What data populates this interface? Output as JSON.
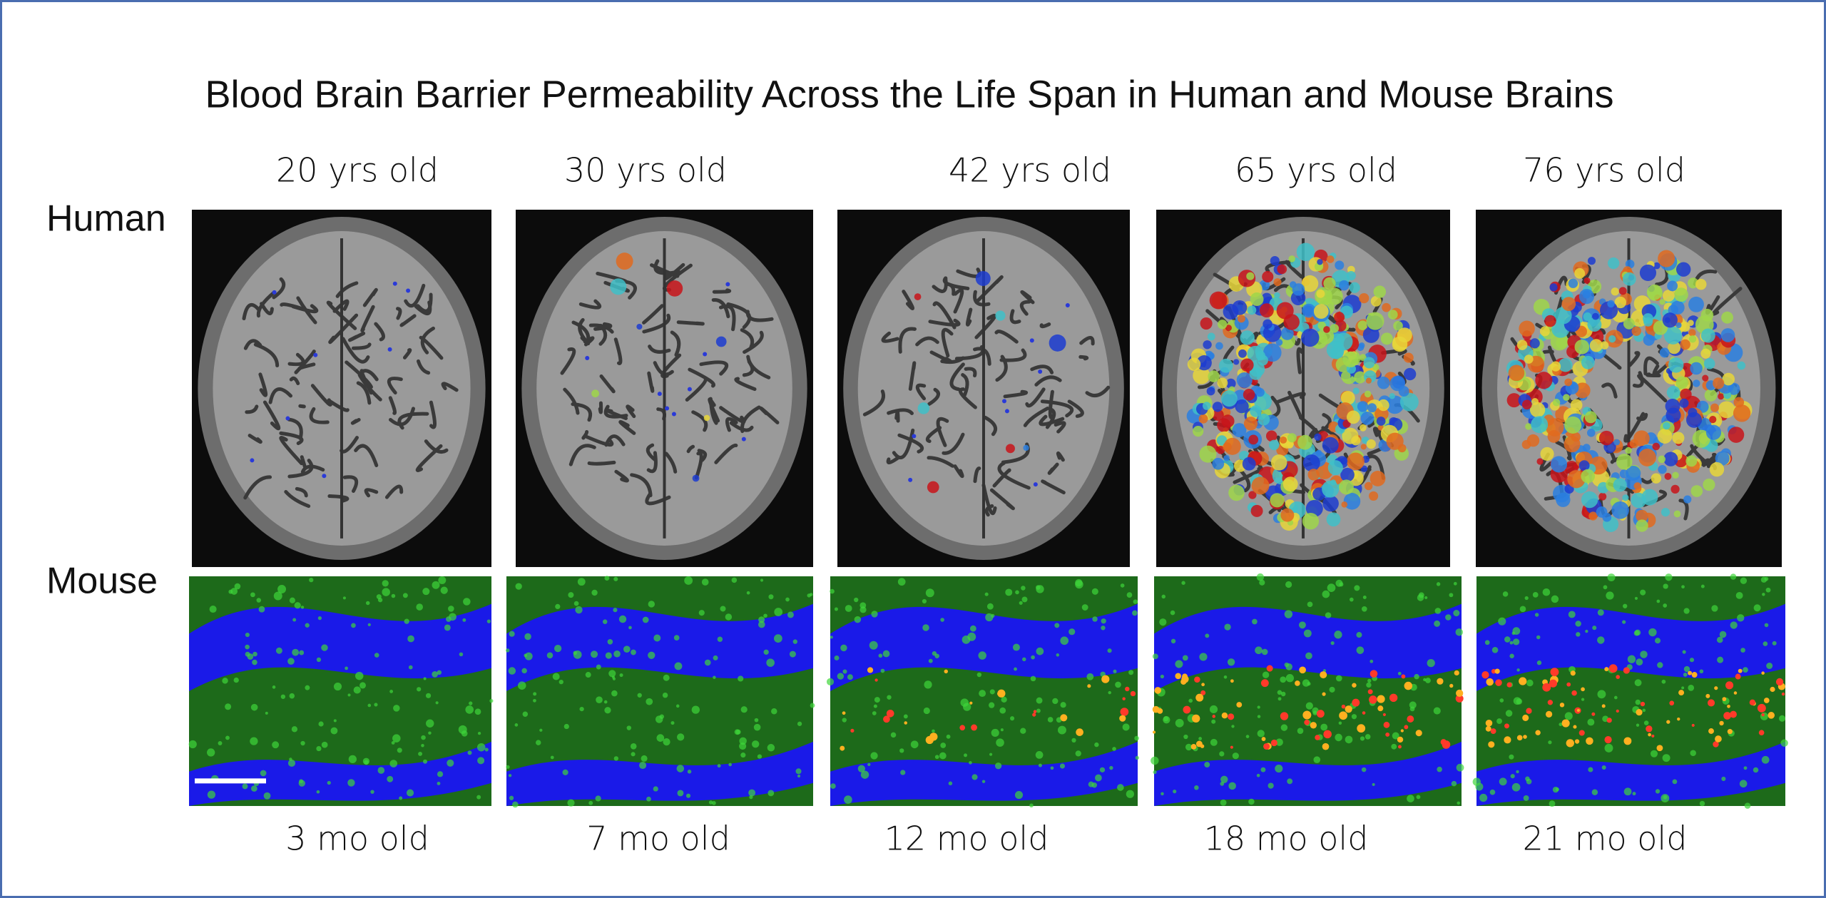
{
  "title": "Blood Brain Barrier Permeability Across the Life Span in Human and Mouse Brains",
  "rows": [
    {
      "label": "Human",
      "ages": [
        "20 yrs old",
        "30 yrs old",
        "42 yrs old",
        "65 yrs old",
        "76 yrs old"
      ]
    },
    {
      "label": "Mouse",
      "ages": [
        "3 mo old",
        "7 mo old",
        "12 mo old",
        "18 mo old",
        "21 mo old"
      ]
    }
  ]
}
